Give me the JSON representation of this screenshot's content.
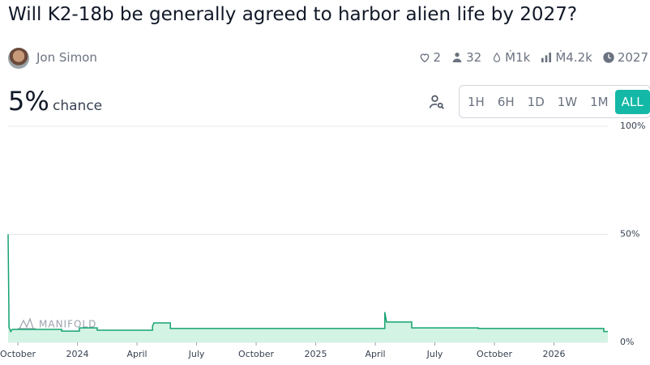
{
  "header": {
    "title": "Will K2-18b be generally agreed to harbor alien life by 2027?",
    "author": "Jon Simon",
    "stats": [
      "2",
      "32",
      "Ṁ1k",
      "Ṁ4.2k",
      "2027"
    ]
  },
  "probability": "5%",
  "probability_caption": "chance",
  "periods": {
    "options": [
      "1H",
      "6H",
      "1D",
      "1W",
      "1M",
      "ALL"
    ],
    "selected_index": 5
  },
  "chart_data": {
    "type": "line",
    "watermark": "MANIFOLD",
    "color": "#16a371",
    "fill": "#d3f3e4",
    "x": [
      2023.709,
      2023.713,
      2023.72,
      2023.726,
      2023.934,
      2023.934,
      2024.008,
      2024.008,
      2024.083,
      2024.083,
      2024.315,
      2024.315,
      2024.321,
      2024.39,
      2024.39,
      2025.29,
      2025.29,
      2025.297,
      2025.403,
      2025.403,
      2025.682,
      2025.682,
      2026.209,
      2026.209,
      2026.226
    ],
    "values": [
      50,
      7,
      5,
      6,
      6,
      5.2,
      5.2,
      6.7,
      6.7,
      5.6,
      5.6,
      7.5,
      9,
      9,
      6.4,
      6.4,
      14,
      9.4,
      9.4,
      6.7,
      6.7,
      6.4,
      6.4,
      5,
      5
    ],
    "xlim": [
      2023.709,
      2026.226
    ],
    "xticks": [
      {
        "value": 2023.75,
        "label": "October"
      },
      {
        "value": 2024,
        "label": "2024"
      },
      {
        "value": 2024.25,
        "label": "April"
      },
      {
        "value": 2024.5,
        "label": "July"
      },
      {
        "value": 2024.75,
        "label": "October"
      },
      {
        "value": 2025,
        "label": "2025"
      },
      {
        "value": 2025.25,
        "label": "April"
      },
      {
        "value": 2025.5,
        "label": "July"
      },
      {
        "value": 2025.75,
        "label": "October"
      },
      {
        "value": 2026,
        "label": "2026"
      }
    ],
    "ylim": [
      0,
      100
    ],
    "yticks": [
      {
        "value": 0,
        "label": "0%"
      },
      {
        "value": 50,
        "label": "50%"
      },
      {
        "value": 100,
        "label": "100%"
      }
    ],
    "grid": true
  }
}
